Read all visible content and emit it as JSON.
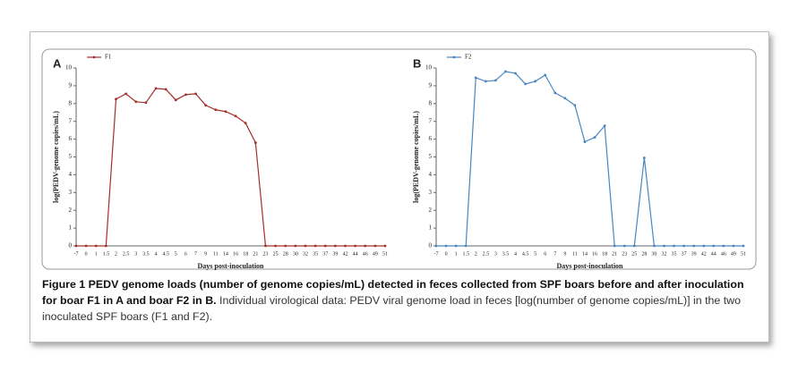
{
  "chart_data": [
    {
      "type": "line",
      "panel": "A",
      "x_label": "Days post-inoculation",
      "y_label": "log(PEDV-genome copies/mL)",
      "categories": [
        "-7",
        "0",
        "1",
        "1.5",
        "2",
        "2.5",
        "3",
        "3.5",
        "4",
        "4.5",
        "5",
        "6",
        "7",
        "9",
        "11",
        "14",
        "16",
        "18",
        "21",
        "23",
        "25",
        "28",
        "30",
        "32",
        "35",
        "37",
        "39",
        "42",
        "44",
        "46",
        "49",
        "51"
      ],
      "series": [
        {
          "name": "F1",
          "color": "#a3302b",
          "values": [
            0,
            0,
            0,
            0,
            8.25,
            8.55,
            8.1,
            8.05,
            8.85,
            8.8,
            8.2,
            8.5,
            8.55,
            7.9,
            7.65,
            7.55,
            7.3,
            6.9,
            5.8,
            0,
            0,
            0,
            0,
            0,
            0,
            0,
            0,
            0,
            0,
            0,
            0,
            0
          ]
        }
      ],
      "ylim": [
        0,
        10
      ],
      "yticks": [
        0,
        1,
        2,
        3,
        4,
        5,
        6,
        7,
        8,
        9,
        10
      ],
      "legend": "top-left"
    },
    {
      "type": "line",
      "panel": "B",
      "x_label": "Days post-inoculation",
      "y_label": "log(PEDV-genome copies/mL)",
      "categories": [
        "-7",
        "0",
        "1",
        "1.5",
        "2",
        "2.5",
        "3",
        "3.5",
        "4",
        "4.5",
        "5",
        "6",
        "7",
        "9",
        "11",
        "14",
        "16",
        "18",
        "21",
        "23",
        "25",
        "28",
        "30",
        "32",
        "35",
        "37",
        "39",
        "42",
        "44",
        "46",
        "49",
        "51"
      ],
      "series": [
        {
          "name": "F2",
          "color": "#4a86c1",
          "values": [
            0,
            0,
            0,
            0,
            9.45,
            9.25,
            9.3,
            9.8,
            9.7,
            9.1,
            9.25,
            9.6,
            8.6,
            8.3,
            7.9,
            5.85,
            6.1,
            6.75,
            0,
            0,
            0,
            4.95,
            0,
            0,
            0,
            0,
            0,
            0,
            0,
            0,
            0,
            0
          ]
        }
      ],
      "ylim": [
        0,
        10
      ],
      "yticks": [
        0,
        1,
        2,
        3,
        4,
        5,
        6,
        7,
        8,
        9,
        10
      ],
      "legend": "top-left"
    }
  ],
  "caption": {
    "bold": "Figure 1  PEDV genome loads (number of genome copies/mL) detected in feces collected from SPF boars before and after inoculation for boar F1 in A and boar F2 in B.",
    "text": "Individual virological data: PEDV viral genome load in feces [log(number of genome copies/mL)] in the two inoculated SPF boars (F1 and F2)."
  }
}
